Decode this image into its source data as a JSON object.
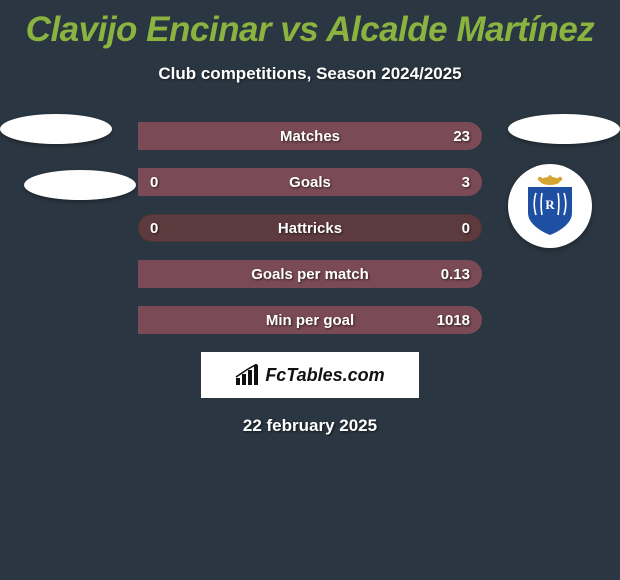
{
  "background_color": "#2a3641",
  "title": {
    "text": "Clavijo Encinar vs Alcalde Martínez",
    "color": "#8ab340",
    "fontsize": 35
  },
  "subtitle": {
    "text": "Club competitions, Season 2024/2025",
    "color": "#ffffff",
    "fontsize": 17
  },
  "badge_color": "#ffffff",
  "club_logo": {
    "bg": "#ffffff",
    "shield_fill": "#1f4fa3",
    "crown_fill": "#d4a531"
  },
  "stats": {
    "track_color": "#5d3a3d",
    "left_fill_color": "#8ab340",
    "right_fill_color": "#7a4a56",
    "text_color": "#ffffff",
    "rows": [
      {
        "label": "Matches",
        "left": "",
        "right": "23",
        "left_pct": 0,
        "right_pct": 100
      },
      {
        "label": "Goals",
        "left": "0",
        "right": "3",
        "left_pct": 0,
        "right_pct": 100
      },
      {
        "label": "Hattricks",
        "left": "0",
        "right": "0",
        "left_pct": 0,
        "right_pct": 0
      },
      {
        "label": "Goals per match",
        "left": "",
        "right": "0.13",
        "left_pct": 0,
        "right_pct": 100
      },
      {
        "label": "Min per goal",
        "left": "",
        "right": "1018",
        "left_pct": 0,
        "right_pct": 100
      }
    ]
  },
  "brand": {
    "text": "FcTables.com",
    "color": "#111111"
  },
  "date": {
    "text": "22 february 2025",
    "color": "#ffffff"
  }
}
